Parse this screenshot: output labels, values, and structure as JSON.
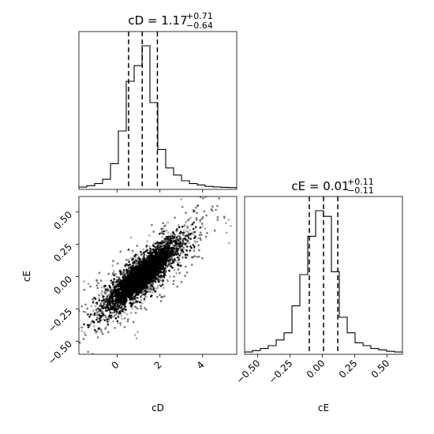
{
  "chart_data": [
    {
      "type": "histogram",
      "panel": "cD-marginal",
      "title": {
        "prefix": "cD = 1.17",
        "sup": "+0.71",
        "sub": "−0.64"
      },
      "xlim": [
        -1.8,
        5.6
      ],
      "quantiles": [
        0.53,
        1.17,
        1.88
      ],
      "bin_edges": [
        -1.8,
        -1.43,
        -1.06,
        -0.69,
        -0.32,
        0.05,
        0.42,
        0.79,
        1.16,
        1.53,
        1.9,
        2.27,
        2.64,
        3.01,
        3.38,
        3.75,
        4.12,
        4.49,
        4.86,
        5.23,
        5.6
      ],
      "counts": [
        0.5,
        1.5,
        3,
        6,
        17,
        40,
        75,
        86,
        100,
        60,
        27,
        14,
        9,
        5,
        3,
        2,
        1,
        0.6,
        0.3,
        0.2
      ],
      "xlabel": ""
    },
    {
      "type": "histogram",
      "panel": "cE-marginal",
      "title": {
        "prefix": "cE = 0.01",
        "sup": "+0.11",
        "sub": "−0.11"
      },
      "xlim": [
        -0.6,
        0.62
      ],
      "xticks": [
        -0.5,
        -0.25,
        0.0,
        0.25,
        0.5
      ],
      "xtick_labels": [
        "−0.50",
        "−0.25",
        "0.00",
        "0.25",
        "0.50"
      ],
      "quantiles": [
        -0.1,
        0.01,
        0.12
      ],
      "bin_edges": [
        -0.6,
        -0.539,
        -0.478,
        -0.417,
        -0.356,
        -0.295,
        -0.234,
        -0.173,
        -0.112,
        -0.051,
        0.01,
        0.071,
        0.132,
        0.193,
        0.254,
        0.315,
        0.376,
        0.437,
        0.498,
        0.559,
        0.62
      ],
      "counts": [
        0.5,
        1.5,
        3,
        5,
        9,
        14,
        33,
        55,
        82,
        100,
        96,
        57,
        25,
        14,
        7,
        5,
        3,
        2,
        1,
        0.5
      ],
      "xlabel": "cE"
    },
    {
      "type": "scatter",
      "panel": "cD-cE-joint",
      "xlim": [
        -1.8,
        5.6
      ],
      "ylim": [
        -0.6,
        0.62
      ],
      "xticks": [
        0,
        2,
        4
      ],
      "xtick_labels": [
        "0",
        "2",
        "4"
      ],
      "yticks": [
        -0.5,
        -0.25,
        0.0,
        0.25,
        0.5
      ],
      "ytick_labels": [
        "−0.50",
        "−0.25",
        "0.00",
        "0.25",
        "0.50"
      ],
      "xlabel": "cD",
      "ylabel": "cE",
      "center": [
        1.17,
        0.01
      ],
      "correlation": 0.85,
      "contours": [
        {
          "level": "outer",
          "fill": "#ffffff",
          "points": [
            [
              -0.3,
              -0.25
            ],
            [
              0.3,
              -0.15
            ],
            [
              1.3,
              -0.02
            ],
            [
              2.3,
              0.15
            ],
            [
              2.8,
              0.26
            ],
            [
              2.7,
              0.28
            ],
            [
              1.9,
              0.22
            ],
            [
              0.9,
              0.07
            ],
            [
              -0.1,
              -0.08
            ],
            [
              -0.4,
              -0.18
            ]
          ]
        },
        {
          "level": "middle",
          "fill": "#d9d9d9",
          "points": [
            [
              0.3,
              -0.12
            ],
            [
              0.8,
              -0.06
            ],
            [
              1.6,
              0.04
            ],
            [
              2.2,
              0.16
            ],
            [
              2.1,
              0.19
            ],
            [
              1.5,
              0.13
            ],
            [
              0.8,
              0.05
            ],
            [
              0.2,
              -0.04
            ]
          ]
        },
        {
          "level": "inner",
          "fill": "#3a3a3a",
          "points": [
            [
              0.7,
              -0.04
            ],
            [
              1.1,
              0.0
            ],
            [
              1.5,
              0.05
            ],
            [
              1.5,
              0.09
            ],
            [
              1.2,
              0.07
            ],
            [
              0.8,
              0.03
            ],
            [
              0.6,
              -0.01
            ]
          ]
        }
      ]
    }
  ]
}
